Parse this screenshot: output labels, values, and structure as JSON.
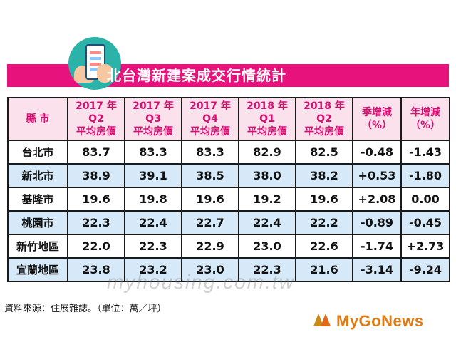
{
  "title": "北台灣新建案成交行情統計",
  "table": {
    "headers": [
      {
        "line1": "縣 市",
        "line2": ""
      },
      {
        "line1": "2017 年 Q2",
        "line2": "平均房價"
      },
      {
        "line1": "2017 年 Q3",
        "line2": "平均房價"
      },
      {
        "line1": "2017 年 Q4",
        "line2": "平均房價"
      },
      {
        "line1": "2018 年 Q1",
        "line2": "平均房價"
      },
      {
        "line1": "2018 年 Q2",
        "line2": "平均房價"
      },
      {
        "line1": "季增減",
        "line2": "（%）"
      },
      {
        "line1": "年增減",
        "line2": "（%）"
      }
    ],
    "rows": [
      [
        "台北市",
        "83.7",
        "83.3",
        "83.3",
        "82.9",
        "82.5",
        "-0.48",
        "-1.43"
      ],
      [
        "新北市",
        "38.9",
        "39.1",
        "38.5",
        "38.0",
        "38.2",
        "+0.53",
        "-1.80"
      ],
      [
        "基隆市",
        "19.6",
        "19.8",
        "19.6",
        "19.2",
        "19.6",
        "+2.08",
        "0.00"
      ],
      [
        "桃園市",
        "22.3",
        "22.4",
        "22.7",
        "22.4",
        "22.2",
        "-0.89",
        "-0.45"
      ],
      [
        "新竹地區",
        "22.0",
        "22.3",
        "22.9",
        "23.0",
        "22.6",
        "-1.74",
        "+2.73"
      ],
      [
        "宜蘭地區",
        "23.8",
        "23.2",
        "23.0",
        "22.3",
        "21.6",
        "-3.14",
        "-9.24"
      ]
    ]
  },
  "watermark": "myhousing.com.tw",
  "source": "資料來源：住展雜誌。（單位：萬／坪）",
  "logo": {
    "text": "MyGoNews"
  },
  "colors": {
    "title_bg": "#e8127c",
    "header_bg": "#fbe1eb",
    "header_text": "#d60f72",
    "row_alt": "#d6e9f8",
    "logo": "#e07b14"
  },
  "icons": {
    "badge": "phone-in-hand-icon",
    "logo_mark": "mygonews-mark-icon"
  }
}
